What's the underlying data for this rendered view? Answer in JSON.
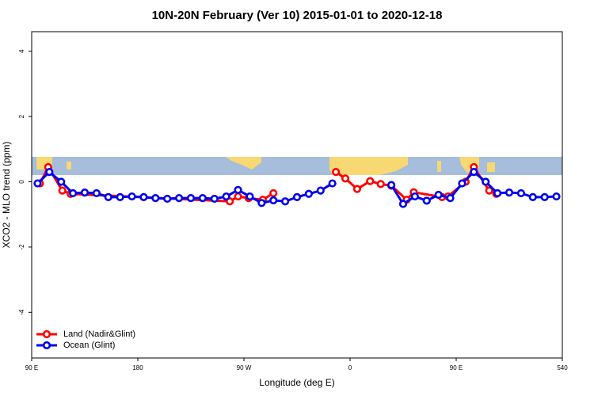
{
  "chart_data": {
    "type": "line",
    "title": "10N-20N February (Ver 10)   2015-01-01 to 2020-12-18",
    "x_label": "Longitude (deg E)",
    "y_label": "XCO2 - MLO trend (ppm)",
    "xlim": [
      90,
      540
    ],
    "ylim": [
      -5.4,
      4.6
    ],
    "xticks": [
      {
        "value": 90,
        "label": "90 E"
      },
      180,
      {
        "value": 270,
        "label": "90 W"
      },
      {
        "value": 360,
        "label": "0"
      },
      {
        "value": 450,
        "label": "90 E"
      },
      540
    ],
    "yticks": [
      -4,
      -2,
      0,
      2,
      4
    ],
    "legend": "bottom-left",
    "series": [
      {
        "name": "Land (Nadir&Glint)",
        "color": "#ff0000",
        "x": [
          97,
          104,
          116,
          123,
          258,
          265,
          274,
          286,
          295,
          320,
          348,
          356,
          366,
          377,
          386,
          395,
          408,
          414,
          438,
          443,
          458,
          465,
          478,
          484
        ],
        "values": [
          -0.05,
          0.45,
          -0.27,
          -0.37,
          -0.6,
          -0.45,
          -0.5,
          -0.55,
          -0.35,
          null,
          0.3,
          0.1,
          -0.22,
          0.02,
          -0.07,
          -0.12,
          -0.55,
          -0.32,
          -0.47,
          -0.45,
          0,
          0.45,
          -0.27,
          -0.37
        ]
      },
      {
        "name": "Ocean (Glint)",
        "color": "#0000ee",
        "x": [
          95,
          105,
          115,
          125,
          135,
          145,
          155,
          165,
          175,
          185,
          195,
          205,
          215,
          225,
          235,
          245,
          255,
          265,
          275,
          285,
          295,
          305,
          315,
          325,
          335,
          345,
          355,
          365,
          375,
          385,
          395,
          405,
          415,
          425,
          435,
          445,
          455,
          465,
          475,
          485,
          495,
          505,
          515,
          525,
          535
        ],
        "values": [
          -0.05,
          0.3,
          0,
          -0.35,
          -0.33,
          -0.35,
          -0.47,
          -0.47,
          -0.45,
          -0.47,
          -0.5,
          -0.52,
          -0.5,
          -0.5,
          -0.5,
          -0.52,
          -0.45,
          -0.25,
          -0.45,
          -0.65,
          -0.57,
          -0.6,
          -0.47,
          -0.37,
          -0.27,
          -0.05,
          null,
          null,
          null,
          null,
          -0.1,
          -0.68,
          -0.45,
          -0.58,
          -0.4,
          -0.5,
          -0.05,
          0.3,
          0,
          -0.35,
          -0.33,
          -0.35,
          -0.47,
          -0.47,
          -0.45
        ]
      }
    ]
  }
}
